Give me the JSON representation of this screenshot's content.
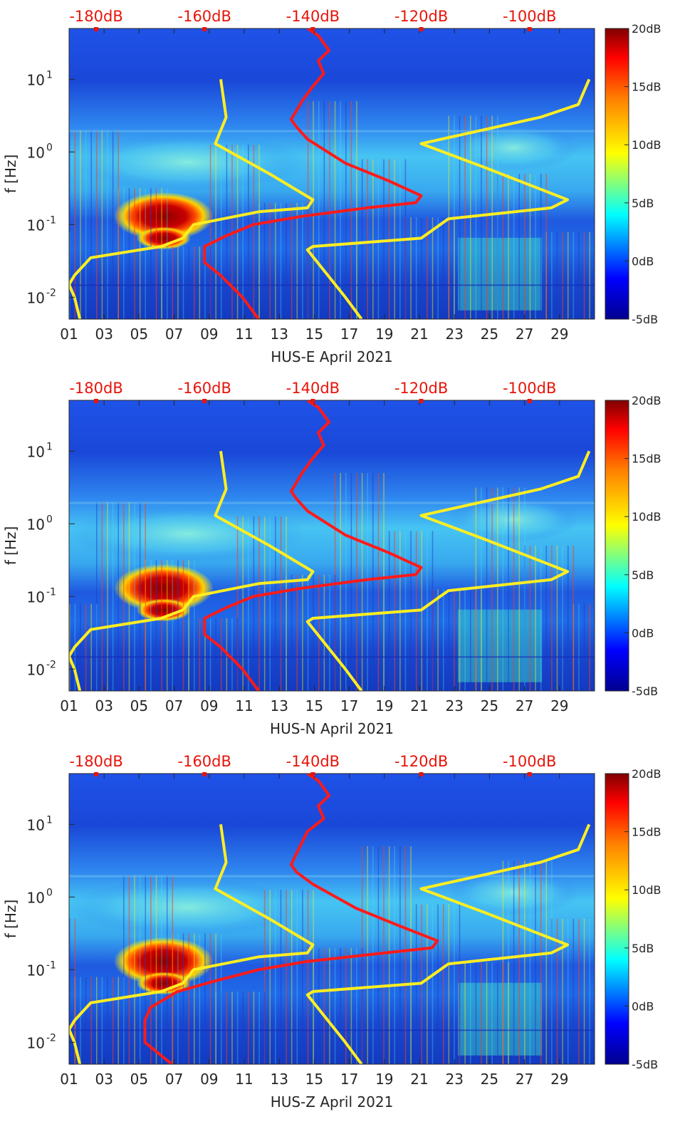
{
  "colors": {
    "psd_model_line": "#ff1a1a",
    "noise_model_line": "#ffee22",
    "top_axis_text": "#e8140a"
  },
  "chart_data": [
    {
      "type": "heatmap",
      "xlabel": "HUS-E April 2021",
      "ylabel": "f [Hz]",
      "x_ticks": [
        "01",
        "03",
        "05",
        "07",
        "09",
        "11",
        "13",
        "15",
        "17",
        "19",
        "21",
        "23",
        "25",
        "27",
        "29"
      ],
      "y_ticks": [
        {
          "value": 0.01,
          "base": "10",
          "exp": "-2"
        },
        {
          "value": 0.1,
          "base": "10",
          "exp": "-1"
        },
        {
          "value": 1,
          "base": "10",
          "exp": "0"
        },
        {
          "value": 10,
          "base": "10",
          "exp": "1"
        }
      ],
      "ylim": [
        0.005,
        50
      ],
      "y_scale": "log",
      "top_axis_ticks": [
        "-180dB",
        "-160dB",
        "-140dB",
        "-120dB",
        "-100dB"
      ],
      "top_axis_range": [
        -185,
        -88
      ],
      "colorbar": {
        "ticks": [
          "20dB",
          "15dB",
          "10dB",
          "5dB",
          "0dB",
          "-5dB"
        ],
        "range": [
          -5,
          20
        ]
      },
      "lines": [
        {
          "color": "red",
          "points": [
            [
              -141,
              50
            ],
            [
              -139,
              40
            ],
            [
              -137,
              25
            ],
            [
              -139,
              18
            ],
            [
              -138,
              12
            ],
            [
              -140,
              8
            ],
            [
              -142,
              5
            ],
            [
              -144,
              2.8
            ],
            [
              -143,
              2.2
            ],
            [
              -141,
              1.5
            ],
            [
              -134,
              0.7
            ],
            [
              -126,
              0.4
            ],
            [
              -120,
              0.25
            ],
            [
              -121,
              0.2
            ],
            [
              -130,
              0.17
            ],
            [
              -142,
              0.13
            ],
            [
              -151,
              0.1
            ],
            [
              -156,
              0.07
            ],
            [
              -160,
              0.05
            ],
            [
              -160,
              0.03
            ],
            [
              -157,
              0.02
            ],
            [
              -153,
              0.01
            ],
            [
              -150,
              0.005
            ]
          ]
        },
        {
          "color": "yellow",
          "points": [
            [
              -157,
              10
            ],
            [
              -156,
              3
            ],
            [
              -158,
              1.3
            ],
            [
              -148,
              0.5
            ],
            [
              -140,
              0.22
            ],
            [
              -141,
              0.17
            ],
            [
              -150,
              0.15
            ],
            [
              -162,
              0.1
            ],
            [
              -164,
              0.065
            ],
            [
              -168,
              0.05
            ],
            [
              -181,
              0.035
            ],
            [
              -184,
              0.02
            ],
            [
              -185,
              0.015
            ],
            [
              -184,
              0.01
            ],
            [
              -183,
              0.005
            ]
          ]
        },
        {
          "color": "yellow",
          "points": [
            [
              -89,
              10
            ],
            [
              -91,
              4.5
            ],
            [
              -98,
              3
            ],
            [
              -120,
              1.3
            ],
            [
              -108,
              0.6
            ],
            [
              -93,
              0.22
            ],
            [
              -96,
              0.17
            ],
            [
              -115,
              0.12
            ],
            [
              -120,
              0.065
            ],
            [
              -140,
              0.05
            ],
            [
              -141,
              0.045
            ],
            [
              -134,
              0.01
            ],
            [
              -131,
              0.005
            ]
          ]
        }
      ]
    },
    {
      "type": "heatmap",
      "xlabel": "HUS-N April 2021",
      "ylabel": "f [Hz]",
      "x_ticks": [
        "01",
        "03",
        "05",
        "07",
        "09",
        "11",
        "13",
        "15",
        "17",
        "19",
        "21",
        "23",
        "25",
        "27",
        "29"
      ],
      "y_ticks": [
        {
          "value": 0.01,
          "base": "10",
          "exp": "-2"
        },
        {
          "value": 0.1,
          "base": "10",
          "exp": "-1"
        },
        {
          "value": 1,
          "base": "10",
          "exp": "0"
        },
        {
          "value": 10,
          "base": "10",
          "exp": "1"
        }
      ],
      "ylim": [
        0.005,
        50
      ],
      "y_scale": "log",
      "top_axis_ticks": [
        "-180dB",
        "-160dB",
        "-140dB",
        "-120dB",
        "-100dB"
      ],
      "top_axis_range": [
        -185,
        -88
      ],
      "colorbar": {
        "ticks": [
          "20dB",
          "15dB",
          "10dB",
          "5dB",
          "0dB",
          "-5dB"
        ],
        "range": [
          -5,
          20
        ]
      },
      "lines": [
        {
          "color": "red",
          "points": [
            [
              -141,
              50
            ],
            [
              -139,
              40
            ],
            [
              -137,
              25
            ],
            [
              -139,
              18
            ],
            [
              -138,
              12
            ],
            [
              -140,
              8
            ],
            [
              -142,
              5
            ],
            [
              -144,
              2.8
            ],
            [
              -143,
              2.2
            ],
            [
              -141,
              1.5
            ],
            [
              -134,
              0.7
            ],
            [
              -126,
              0.4
            ],
            [
              -120,
              0.25
            ],
            [
              -121,
              0.2
            ],
            [
              -130,
              0.17
            ],
            [
              -142,
              0.13
            ],
            [
              -151,
              0.1
            ],
            [
              -156,
              0.07
            ],
            [
              -160,
              0.05
            ],
            [
              -160,
              0.03
            ],
            [
              -157,
              0.02
            ],
            [
              -153,
              0.01
            ],
            [
              -150,
              0.005
            ]
          ]
        },
        {
          "color": "yellow",
          "points": [
            [
              -157,
              10
            ],
            [
              -156,
              3
            ],
            [
              -158,
              1.3
            ],
            [
              -148,
              0.5
            ],
            [
              -140,
              0.22
            ],
            [
              -141,
              0.17
            ],
            [
              -150,
              0.15
            ],
            [
              -162,
              0.1
            ],
            [
              -164,
              0.065
            ],
            [
              -168,
              0.05
            ],
            [
              -181,
              0.035
            ],
            [
              -184,
              0.02
            ],
            [
              -185,
              0.015
            ],
            [
              -184,
              0.01
            ],
            [
              -183,
              0.005
            ]
          ]
        },
        {
          "color": "yellow",
          "points": [
            [
              -89,
              10
            ],
            [
              -91,
              4.5
            ],
            [
              -98,
              3
            ],
            [
              -120,
              1.3
            ],
            [
              -108,
              0.6
            ],
            [
              -93,
              0.22
            ],
            [
              -96,
              0.17
            ],
            [
              -115,
              0.12
            ],
            [
              -120,
              0.065
            ],
            [
              -140,
              0.05
            ],
            [
              -141,
              0.045
            ],
            [
              -134,
              0.01
            ],
            [
              -131,
              0.005
            ]
          ]
        }
      ]
    },
    {
      "type": "heatmap",
      "xlabel": "HUS-Z April 2021",
      "ylabel": "f [Hz]",
      "x_ticks": [
        "01",
        "03",
        "05",
        "07",
        "09",
        "11",
        "13",
        "15",
        "17",
        "19",
        "21",
        "23",
        "25",
        "27",
        "29"
      ],
      "y_ticks": [
        {
          "value": 0.01,
          "base": "10",
          "exp": "-2"
        },
        {
          "value": 0.1,
          "base": "10",
          "exp": "-1"
        },
        {
          "value": 1,
          "base": "10",
          "exp": "0"
        },
        {
          "value": 10,
          "base": "10",
          "exp": "1"
        }
      ],
      "ylim": [
        0.005,
        50
      ],
      "y_scale": "log",
      "top_axis_ticks": [
        "-180dB",
        "-160dB",
        "-140dB",
        "-120dB",
        "-100dB"
      ],
      "top_axis_range": [
        -185,
        -88
      ],
      "colorbar": {
        "ticks": [
          "20dB",
          "15dB",
          "10dB",
          "5dB",
          "0dB",
          "-5dB"
        ],
        "range": [
          -5,
          20
        ]
      },
      "lines": [
        {
          "color": "red",
          "points": [
            [
              -141,
              50
            ],
            [
              -139,
              40
            ],
            [
              -137,
              25
            ],
            [
              -139,
              18
            ],
            [
              -138,
              12
            ],
            [
              -141,
              8
            ],
            [
              -143,
              4
            ],
            [
              -144,
              2.8
            ],
            [
              -143,
              2.2
            ],
            [
              -140,
              1.5
            ],
            [
              -132,
              0.7
            ],
            [
              -124,
              0.4
            ],
            [
              -117,
              0.25
            ],
            [
              -118,
              0.2
            ],
            [
              -130,
              0.16
            ],
            [
              -141,
              0.13
            ],
            [
              -150,
              0.1
            ],
            [
              -158,
              0.07
            ],
            [
              -165,
              0.05
            ],
            [
              -170,
              0.03
            ],
            [
              -171,
              0.02
            ],
            [
              -171,
              0.01
            ],
            [
              -166,
              0.005
            ]
          ]
        },
        {
          "color": "yellow",
          "points": [
            [
              -157,
              10
            ],
            [
              -156,
              3
            ],
            [
              -158,
              1.3
            ],
            [
              -148,
              0.5
            ],
            [
              -140,
              0.22
            ],
            [
              -141,
              0.17
            ],
            [
              -150,
              0.15
            ],
            [
              -162,
              0.1
            ],
            [
              -164,
              0.065
            ],
            [
              -168,
              0.05
            ],
            [
              -181,
              0.035
            ],
            [
              -184,
              0.02
            ],
            [
              -185,
              0.015
            ],
            [
              -184,
              0.01
            ],
            [
              -183,
              0.005
            ]
          ]
        },
        {
          "color": "yellow",
          "points": [
            [
              -89,
              10
            ],
            [
              -91,
              4.5
            ],
            [
              -98,
              3
            ],
            [
              -120,
              1.3
            ],
            [
              -108,
              0.6
            ],
            [
              -93,
              0.22
            ],
            [
              -96,
              0.17
            ],
            [
              -115,
              0.12
            ],
            [
              -120,
              0.065
            ],
            [
              -140,
              0.05
            ],
            [
              -141,
              0.045
            ],
            [
              -134,
              0.01
            ],
            [
              -131,
              0.005
            ]
          ]
        }
      ]
    }
  ]
}
